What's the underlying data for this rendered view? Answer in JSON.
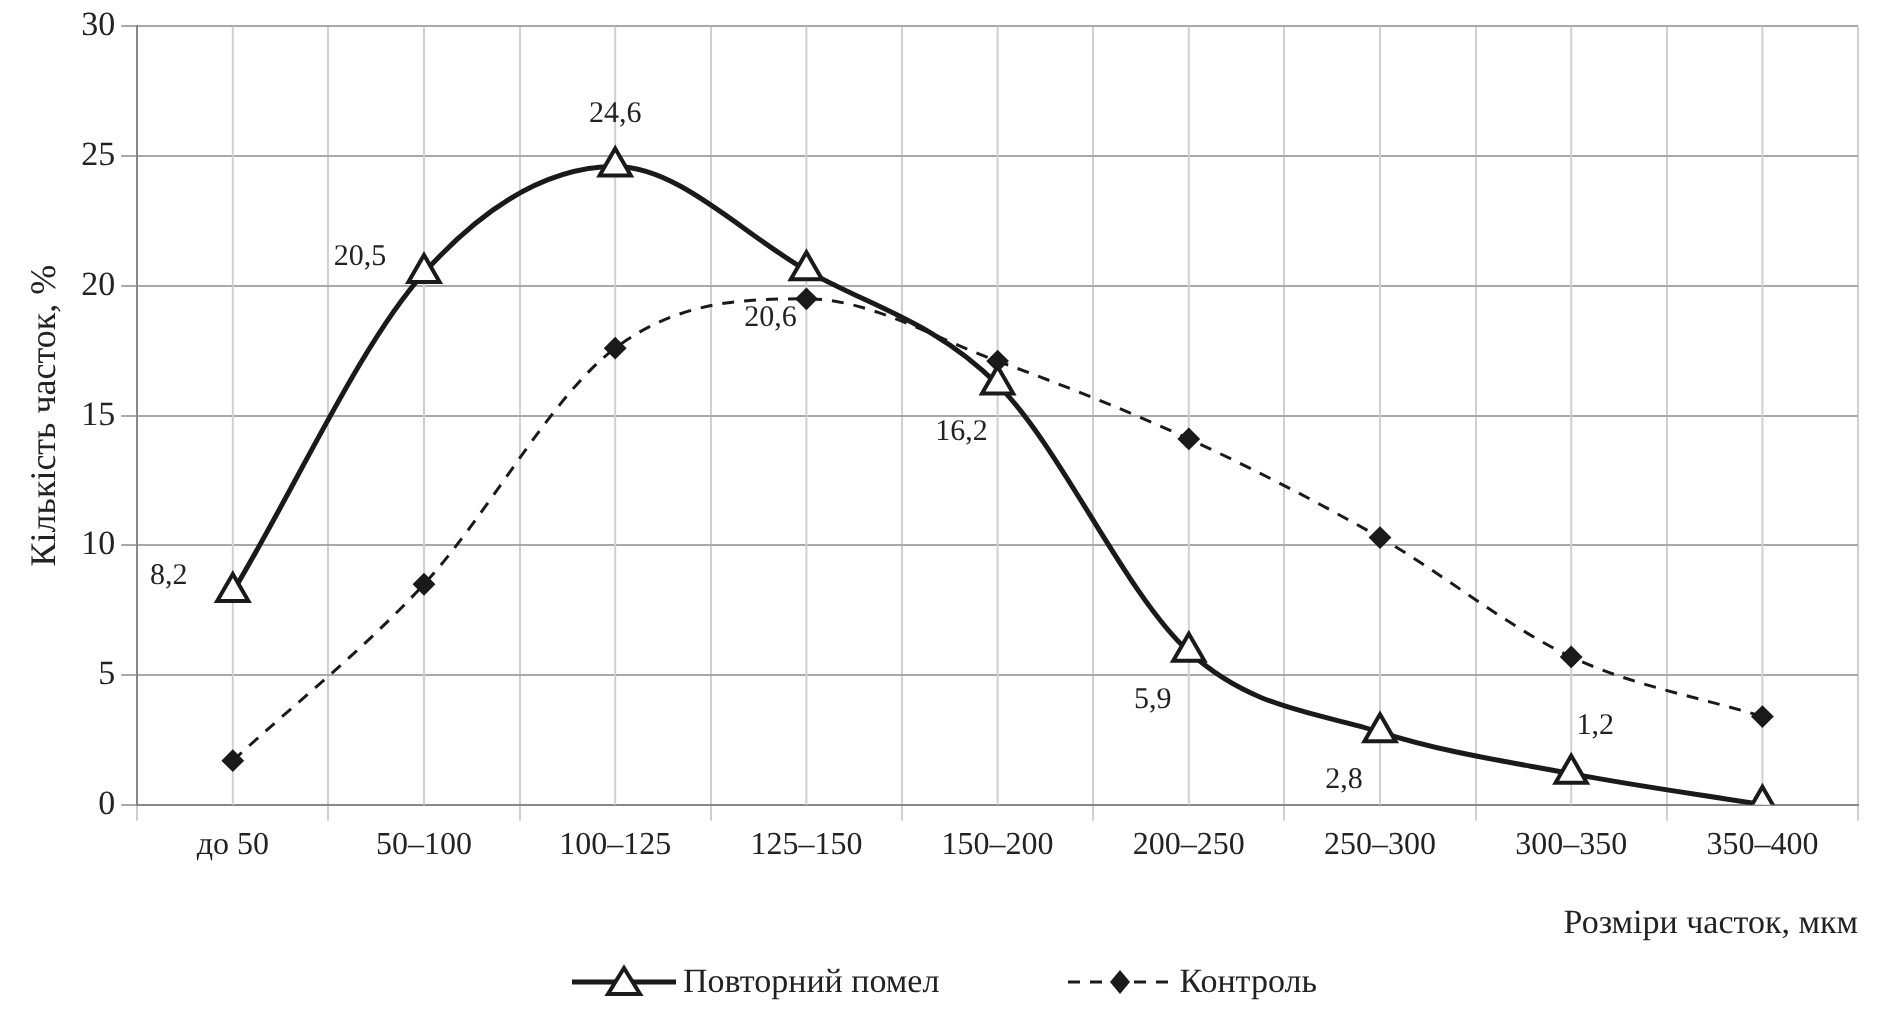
{
  "chart_data": {
    "type": "line",
    "xlabel": "Розміри часток, мкм",
    "ylabel": "Кількість часток, %",
    "categories": [
      "до 50",
      "50–100",
      "100–125",
      "125–150",
      "150–200",
      "200–250",
      "250–300",
      "300–350",
      "350–400"
    ],
    "ylim": [
      0,
      30
    ],
    "yticks": [
      0,
      5,
      10,
      15,
      20,
      25,
      30
    ],
    "grid": true,
    "legend": "bottom",
    "series": [
      {
        "name": "Повторний помел",
        "color": "#1a1a1a",
        "marker": "triangle",
        "line_style": "solid",
        "values": [
          8.2,
          20.5,
          24.6,
          20.6,
          16.2,
          5.9,
          2.8,
          1.2,
          0
        ],
        "value_labels": [
          "8,2",
          "20,5",
          "24,6",
          "20,6",
          "16,2",
          "5,9",
          "2,8",
          "1,2",
          null
        ]
      },
      {
        "name": "Контроль",
        "color": "#1a1a1a",
        "marker": "diamond",
        "line_style": "dashed",
        "values": [
          1.7,
          8.5,
          17.6,
          19.5,
          17.1,
          14.1,
          10.3,
          5.7,
          3.4
        ]
      }
    ]
  }
}
